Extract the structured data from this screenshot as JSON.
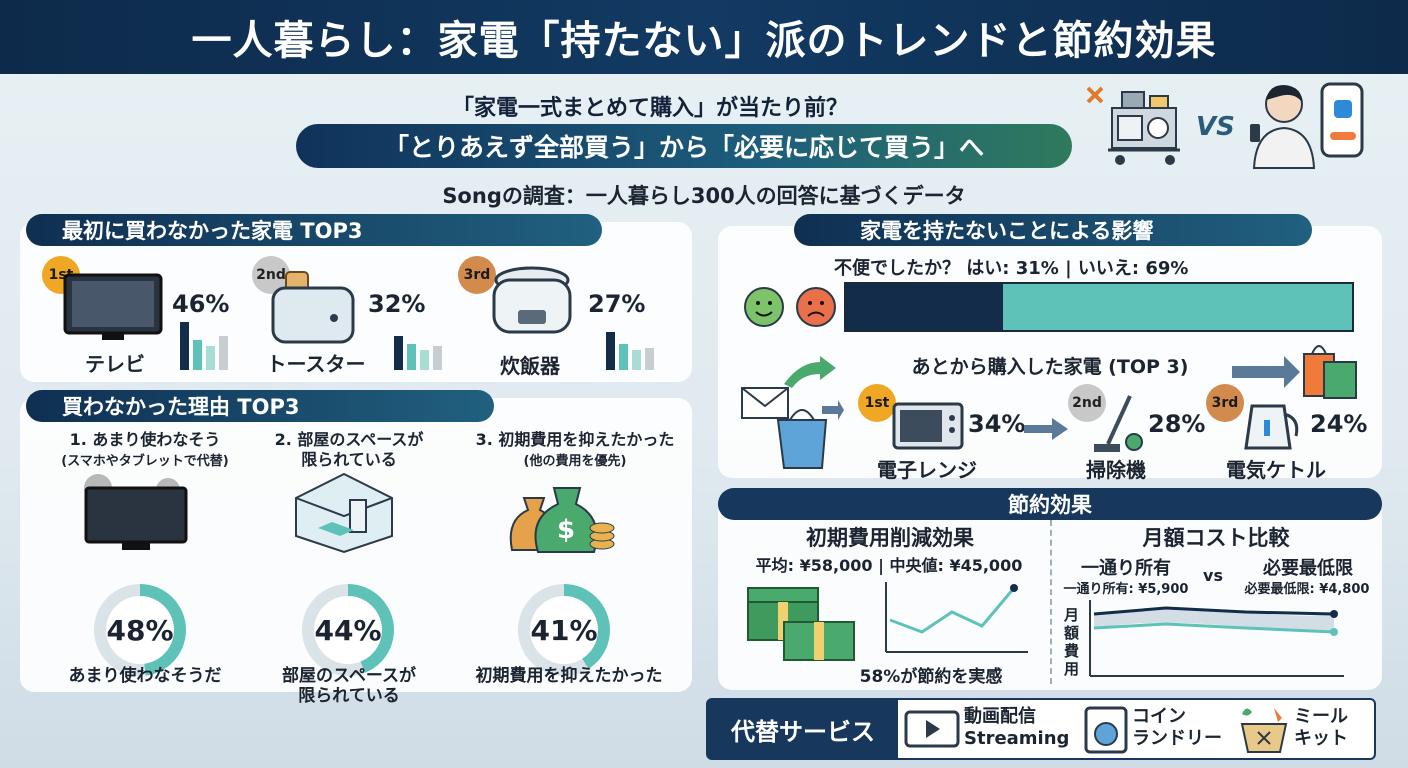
{
  "title": "一人暮らし：家電「持たない」派のトレンドと節約効果",
  "intro": {
    "question": "「家電一式まとめて購入」が当たり前？",
    "banner": "「とりあえず全部買う」から「必要に応じて買う」へ",
    "vs": "VS"
  },
  "survey": "Songの調査：一人暮らし300人の回答に基づくデータ",
  "top3": {
    "heading": "最初に買わなかった家電 TOP3",
    "items": [
      {
        "rank": "1st",
        "name": "テレビ",
        "percent": "46%"
      },
      {
        "rank": "2nd",
        "name": "トースター",
        "percent": "32%"
      },
      {
        "rank": "3rd",
        "name": "炊飯器",
        "percent": "27%"
      }
    ]
  },
  "reasons": {
    "heading": "買わなかった理由 TOP3",
    "items": [
      {
        "title": "1. あまり使わなそう",
        "note": "(スマホやタブレットで代替)",
        "percent": "48%",
        "percent_value": 48,
        "caption": "あまり使わなそうだ"
      },
      {
        "title": "2. 部屋のスペースが\n限られている",
        "note": "",
        "percent": "44%",
        "percent_value": 44,
        "caption": "部屋のスペースが\n限られている"
      },
      {
        "title": "3. 初期費用を抑えたかった",
        "note": "(他の費用を優先)",
        "percent": "41%",
        "percent_value": 41,
        "caption": "初期費用を抑えたかった"
      }
    ]
  },
  "impact": {
    "heading": "家電を持たないことによる影響",
    "question": "不便でしたか？ はい: 31% | いいえ: 69%",
    "yes_fraction": 0.31,
    "no_fraction": 0.69,
    "later_heading": "あとから購入した家電 (TOP 3)",
    "later_items": [
      {
        "rank": "1st",
        "name": "電子レンジ",
        "percent": "34%"
      },
      {
        "rank": "2nd",
        "name": "掃除機",
        "percent": "28%"
      },
      {
        "rank": "3rd",
        "name": "電気ケトル",
        "percent": "24%"
      }
    ]
  },
  "savings": {
    "heading": "節約効果",
    "initial": {
      "title": "初期費用削減効果",
      "stats": "平均: ¥58,000 | 中央値: ¥45,000",
      "caption": "58%が節約を実感"
    },
    "monthly": {
      "title": "月額コスト比較",
      "left_label": "一通り所有",
      "vs": "vs",
      "right_label": "必要最低限",
      "left_value": "一通り所有: ¥5,900",
      "right_value": "必要最低限: ¥4,800",
      "axis_label": "月額費用"
    }
  },
  "alternatives": {
    "heading": "代替サービス",
    "items": [
      {
        "label": "動画配信",
        "sub": "Streaming"
      },
      {
        "label": "コイン",
        "sub": "ランドリー"
      },
      {
        "label": "ミール",
        "sub": "キット"
      }
    ]
  },
  "colors": {
    "navy": "#17385c",
    "teal": "#5fc2b8",
    "bar_dark": "#132c4a"
  }
}
